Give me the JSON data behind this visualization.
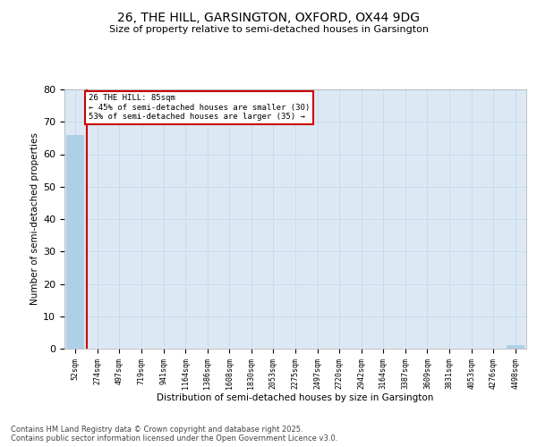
{
  "title1": "26, THE HILL, GARSINGTON, OXFORD, OX44 9DG",
  "title2": "Size of property relative to semi-detached houses in Garsington",
  "xlabel": "Distribution of semi-detached houses by size in Garsington",
  "ylabel": "Number of semi-detached properties",
  "categories": [
    "52sqm",
    "274sqm",
    "497sqm",
    "719sqm",
    "941sqm",
    "1164sqm",
    "1386sqm",
    "1608sqm",
    "1830sqm",
    "2053sqm",
    "2275sqm",
    "2497sqm",
    "2720sqm",
    "2942sqm",
    "3164sqm",
    "3387sqm",
    "3609sqm",
    "3831sqm",
    "4053sqm",
    "4276sqm",
    "4498sqm"
  ],
  "values": [
    66,
    0,
    0,
    0,
    0,
    0,
    0,
    0,
    0,
    0,
    0,
    0,
    0,
    0,
    0,
    0,
    0,
    0,
    0,
    0,
    1
  ],
  "bar_color": "#aed0e6",
  "annotation_line1": "26 THE HILL: 85sqm",
  "annotation_line2": "← 45% of semi-detached houses are smaller (30)",
  "annotation_line3": "53% of semi-detached houses are larger (35) →",
  "annotation_box_facecolor": "#ffffff",
  "annotation_box_edgecolor": "#cc0000",
  "vline_color": "#cc0000",
  "vline_x": 0.5,
  "ylim": [
    0,
    80
  ],
  "yticks": [
    0,
    10,
    20,
    30,
    40,
    50,
    60,
    70,
    80
  ],
  "grid_color": "#c8d8e8",
  "plot_bg_color": "#dce9f5",
  "fig_bg_color": "#ffffff",
  "footer_line1": "Contains HM Land Registry data © Crown copyright and database right 2025.",
  "footer_line2": "Contains public sector information licensed under the Open Government Licence v3.0."
}
